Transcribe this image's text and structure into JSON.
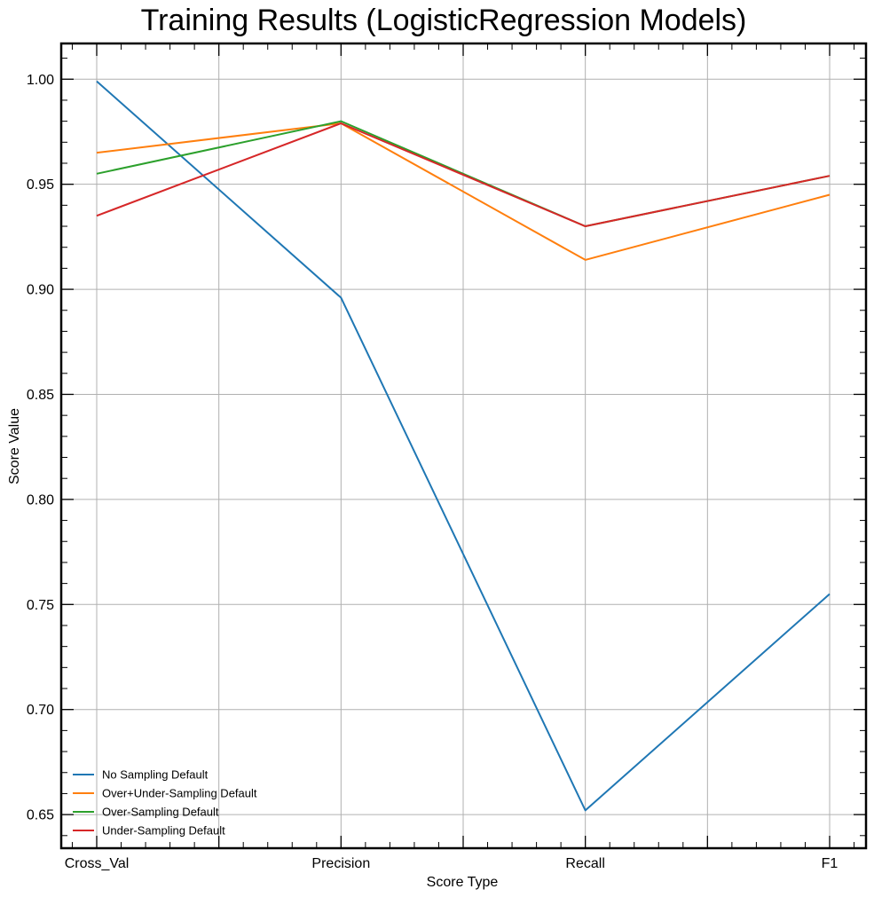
{
  "chart_data": {
    "type": "line",
    "title": "Training Results (LogisticRegression Models)",
    "xlabel": "Score Type",
    "ylabel": "Score Value",
    "categories": [
      "Cross_Val",
      "Precision",
      "Recall",
      "F1"
    ],
    "ylim": [
      0.634,
      1.017
    ],
    "yticks": [
      0.65,
      0.7,
      0.75,
      0.8,
      0.85,
      0.9,
      0.95,
      1.0
    ],
    "ytick_labels": [
      "0.65",
      "0.70",
      "0.75",
      "0.80",
      "0.85",
      "0.90",
      "0.95",
      "1.00"
    ],
    "grid": true,
    "legend_position": "lower-left",
    "series": [
      {
        "name": "No Sampling Default",
        "color": "#1f77b4",
        "values": [
          0.999,
          0.896,
          0.652,
          0.755
        ]
      },
      {
        "name": "Over+Under-Sampling Default",
        "color": "#ff7f0e",
        "values": [
          0.965,
          0.979,
          0.914,
          0.945
        ]
      },
      {
        "name": "Over-Sampling Default",
        "color": "#2ca02c",
        "values": [
          0.955,
          0.98,
          0.93,
          0.954
        ]
      },
      {
        "name": "Under-Sampling Default",
        "color": "#d62728",
        "values": [
          0.935,
          0.979,
          0.93,
          0.954
        ]
      }
    ]
  }
}
